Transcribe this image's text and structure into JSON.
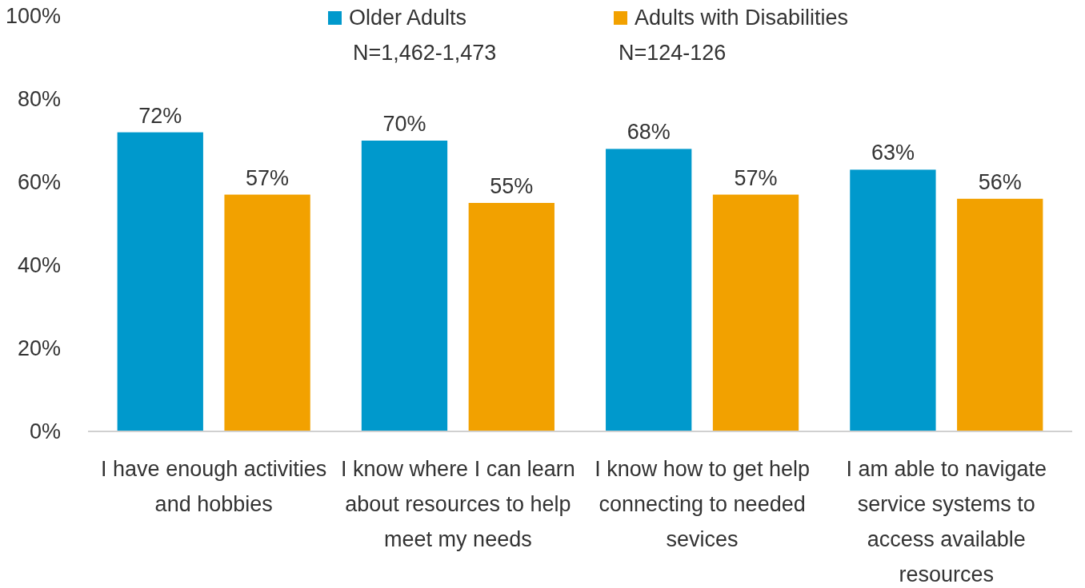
{
  "chart_data": {
    "type": "bar",
    "categories": [
      "I have enough activities and hobbies",
      "I know where I can learn about resources to help meet my needs",
      "I know how to get help connecting to needed sevices",
      "I am able to navigate service systems to access available resources"
    ],
    "series": [
      {
        "name": "Older Adults",
        "color": "#0099cc",
        "values": [
          72,
          70,
          68,
          63
        ],
        "value_labels": [
          "72%",
          "70%",
          "68%",
          "63%"
        ]
      },
      {
        "name": "Adults with Disabilities",
        "color": "#f2a100",
        "values": [
          57,
          55,
          57,
          56
        ],
        "value_labels": [
          "57%",
          "55%",
          "57%",
          "56%"
        ]
      }
    ],
    "ylim": [
      0,
      100
    ],
    "yticks": [
      {
        "value": 0,
        "label": "0%"
      },
      {
        "value": 20,
        "label": "20%"
      },
      {
        "value": 40,
        "label": "40%"
      },
      {
        "value": 60,
        "label": "60%"
      },
      {
        "value": 80,
        "label": "80%"
      },
      {
        "value": 100,
        "label": "100%"
      }
    ],
    "legend": "top",
    "annotations": [
      "N=1,462-1,473",
      "N=124-126"
    ]
  }
}
